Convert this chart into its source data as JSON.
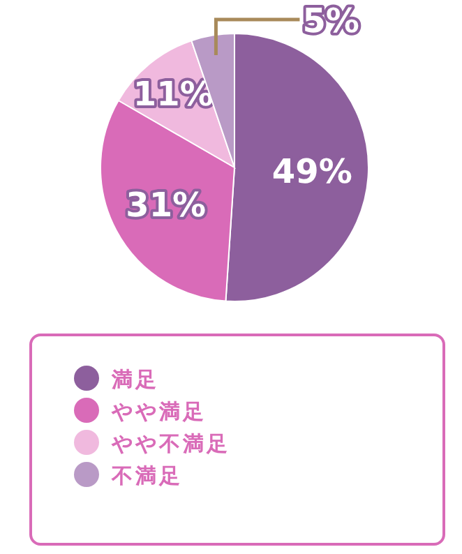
{
  "chart_data": {
    "type": "pie",
    "categories": [
      "満足",
      "やや満足",
      "やや不満足",
      "不満足"
    ],
    "values": [
      49,
      31,
      11,
      5
    ],
    "colors": [
      "#8d5f9d",
      "#d96bb8",
      "#f0b9de",
      "#b99ac6"
    ],
    "value_labels": [
      "49%",
      "31%",
      "11%",
      "5%"
    ],
    "legend": "bottom"
  }
}
